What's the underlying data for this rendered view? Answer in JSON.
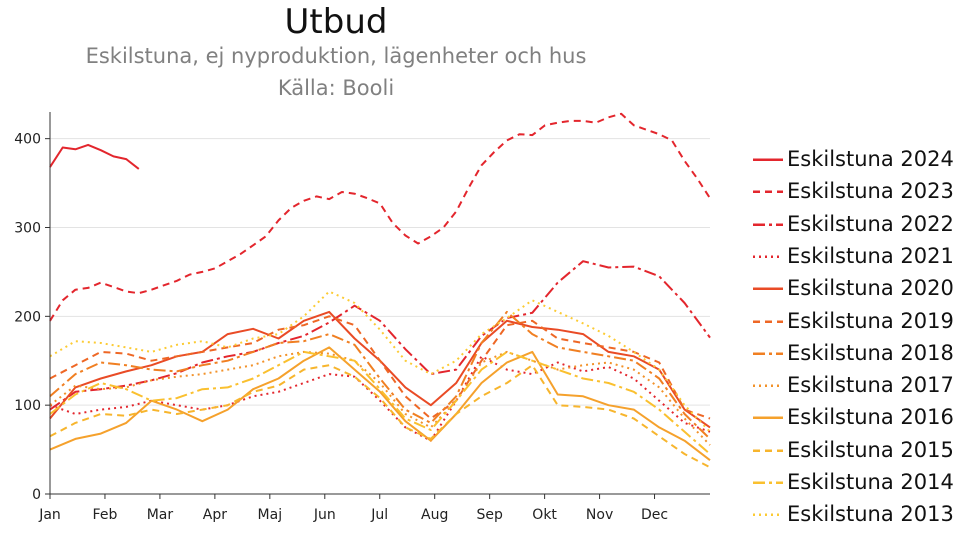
{
  "title": "Utbud",
  "subtitle": "Eskilstuna, ej nyproduktion, lägenheter och hus",
  "source": "Källa: Booli",
  "chart_data": {
    "type": "line",
    "x_ticks": [
      "Jan",
      "Feb",
      "Mar",
      "Apr",
      "Maj",
      "Jun",
      "Jul",
      "Aug",
      "Sep",
      "Okt",
      "Nov",
      "Dec"
    ],
    "y_ticks": [
      0,
      100,
      200,
      300,
      400
    ],
    "xlim": [
      1,
      53
    ],
    "ylim": [
      0,
      430
    ],
    "grid": "horizontal",
    "legend_position": "right",
    "series": [
      {
        "name": "Eskilstuna 2024",
        "color": "#e3262d",
        "dash": "solid",
        "x": [
          1,
          2,
          3,
          4,
          5,
          6,
          7,
          8
        ],
        "values": [
          368,
          390,
          388,
          393,
          387,
          380,
          377,
          366
        ]
      },
      {
        "name": "Eskilstuna 2023",
        "color": "#e3262d",
        "dash": "dash",
        "x": [
          1,
          2,
          3,
          4,
          5,
          6,
          7,
          8,
          9,
          10,
          11,
          12,
          13,
          14,
          15,
          16,
          17,
          18,
          19,
          20,
          21,
          22,
          23,
          24,
          25,
          26,
          27,
          28,
          29,
          30,
          31,
          32,
          33,
          34,
          35,
          36,
          37,
          38,
          39,
          40,
          41,
          42,
          43,
          44,
          45,
          46,
          47,
          48,
          49,
          50,
          51,
          52,
          53
        ],
        "values": [
          195,
          218,
          230,
          232,
          238,
          233,
          228,
          226,
          230,
          235,
          240,
          247,
          250,
          254,
          262,
          270,
          280,
          290,
          308,
          322,
          330,
          335,
          332,
          340,
          338,
          333,
          327,
          305,
          291,
          282,
          290,
          300,
          318,
          345,
          370,
          385,
          398,
          405,
          404,
          415,
          418,
          420,
          420,
          418,
          424,
          428,
          415,
          410,
          405,
          398,
          375,
          355,
          333
        ]
      },
      {
        "name": "Eskilstuna 2022",
        "color": "#e3262d",
        "dash": "dashdot",
        "x": [
          1,
          3,
          5,
          7,
          9,
          11,
          13,
          15,
          17,
          19,
          21,
          23,
          25,
          27,
          29,
          31,
          33,
          35,
          37,
          39,
          41,
          43,
          45,
          47,
          49,
          51,
          53
        ],
        "values": [
          95,
          115,
          118,
          122,
          128,
          136,
          148,
          155,
          160,
          170,
          178,
          193,
          212,
          195,
          163,
          135,
          140,
          178,
          198,
          204,
          238,
          262,
          255,
          256,
          245,
          215,
          176
        ]
      },
      {
        "name": "Eskilstuna 2021",
        "color": "#e3262d",
        "dash": "dot",
        "x": [
          1,
          3,
          5,
          7,
          9,
          11,
          13,
          15,
          17,
          19,
          21,
          23,
          25,
          27,
          29,
          31,
          33,
          35,
          37,
          39,
          41,
          43,
          45,
          47,
          49,
          51,
          53
        ],
        "values": [
          100,
          90,
          95,
          98,
          105,
          100,
          95,
          100,
          110,
          115,
          125,
          135,
          132,
          105,
          75,
          60,
          105,
          155,
          140,
          135,
          148,
          138,
          143,
          130,
          105,
          80,
          70
        ]
      },
      {
        "name": "Eskilstuna 2020",
        "color": "#e94b26",
        "dash": "solid",
        "x": [
          1,
          3,
          5,
          7,
          9,
          11,
          13,
          15,
          17,
          19,
          21,
          23,
          25,
          27,
          29,
          31,
          33,
          35,
          37,
          39,
          41,
          43,
          45,
          47,
          49,
          51,
          53
        ],
        "values": [
          85,
          120,
          130,
          138,
          145,
          155,
          160,
          180,
          186,
          175,
          195,
          205,
          175,
          150,
          120,
          100,
          125,
          170,
          195,
          188,
          185,
          180,
          160,
          155,
          140,
          95,
          75
        ]
      },
      {
        "name": "Eskilstuna 2019",
        "color": "#ee6725",
        "dash": "dash",
        "x": [
          1,
          3,
          5,
          7,
          9,
          11,
          13,
          15,
          17,
          19,
          21,
          23,
          25,
          27,
          29,
          31,
          33,
          35,
          37,
          39,
          41,
          43,
          45,
          47,
          49,
          51,
          53
        ],
        "values": [
          130,
          145,
          160,
          158,
          150,
          155,
          160,
          165,
          170,
          185,
          190,
          200,
          190,
          150,
          110,
          85,
          105,
          150,
          190,
          195,
          175,
          170,
          165,
          160,
          148,
          95,
          85
        ]
      },
      {
        "name": "Eskilstuna 2018",
        "color": "#f07f22",
        "dash": "dashdot",
        "x": [
          1,
          3,
          5,
          7,
          9,
          11,
          13,
          15,
          17,
          19,
          21,
          23,
          25,
          27,
          29,
          31,
          33,
          35,
          37,
          39,
          41,
          43,
          45,
          47,
          49,
          51,
          53
        ],
        "values": [
          110,
          135,
          148,
          145,
          140,
          138,
          145,
          150,
          160,
          170,
          172,
          180,
          168,
          130,
          95,
          80,
          110,
          170,
          205,
          180,
          165,
          160,
          155,
          150,
          130,
          90,
          62
        ]
      },
      {
        "name": "Eskilstuna 2017",
        "color": "#f2922a",
        "dash": "dot",
        "x": [
          1,
          3,
          5,
          7,
          9,
          11,
          13,
          15,
          17,
          19,
          21,
          23,
          25,
          27,
          29,
          31,
          33,
          35,
          37,
          39,
          41,
          43,
          45,
          47,
          49,
          51,
          53
        ],
        "values": [
          100,
          122,
          118,
          120,
          128,
          132,
          135,
          140,
          145,
          155,
          160,
          158,
          150,
          125,
          90,
          75,
          105,
          148,
          160,
          150,
          140,
          145,
          148,
          140,
          120,
          85,
          55
        ]
      },
      {
        "name": "Eskilstuna 2016",
        "color": "#f5a12c",
        "dash": "solid",
        "x": [
          1,
          3,
          5,
          7,
          9,
          11,
          13,
          15,
          17,
          19,
          21,
          23,
          25,
          27,
          29,
          31,
          33,
          35,
          37,
          39,
          41,
          43,
          45,
          47,
          49,
          51,
          53
        ],
        "values": [
          50,
          62,
          68,
          80,
          105,
          95,
          82,
          95,
          118,
          130,
          150,
          165,
          140,
          115,
          82,
          60,
          90,
          125,
          148,
          160,
          112,
          110,
          100,
          95,
          75,
          60,
          38
        ]
      },
      {
        "name": "Eskilstuna 2015",
        "color": "#f7b52d",
        "dash": "dash",
        "x": [
          1,
          3,
          5,
          7,
          9,
          11,
          13,
          15,
          17,
          19,
          21,
          23,
          25,
          27,
          29,
          31,
          33,
          35,
          37,
          39,
          41,
          43,
          45,
          47,
          49,
          51,
          53
        ],
        "values": [
          65,
          80,
          90,
          88,
          95,
          90,
          95,
          100,
          115,
          122,
          140,
          145,
          132,
          108,
          75,
          62,
          90,
          110,
          125,
          145,
          100,
          98,
          95,
          85,
          65,
          45,
          30
        ]
      },
      {
        "name": "Eskilstuna 2014",
        "color": "#fac02f",
        "dash": "dashdot",
        "x": [
          1,
          3,
          5,
          7,
          9,
          11,
          13,
          15,
          17,
          19,
          21,
          23,
          25,
          27,
          29,
          31,
          33,
          35,
          37,
          39,
          41,
          43,
          45,
          47,
          49,
          51,
          53
        ],
        "values": [
          90,
          112,
          125,
          118,
          105,
          108,
          118,
          120,
          130,
          145,
          160,
          155,
          150,
          118,
          85,
          72,
          105,
          140,
          160,
          150,
          140,
          130,
          125,
          115,
          95,
          70,
          45
        ]
      },
      {
        "name": "Eskilstuna 2013",
        "color": "#fccb34",
        "dash": "dot",
        "x": [
          1,
          3,
          5,
          7,
          9,
          11,
          13,
          15,
          17,
          19,
          21,
          23,
          25,
          27,
          29,
          31,
          33,
          35,
          37,
          39,
          41,
          43,
          45,
          47,
          49,
          51,
          53
        ],
        "values": [
          155,
          172,
          170,
          165,
          160,
          168,
          172,
          165,
          175,
          180,
          200,
          228,
          215,
          185,
          150,
          135,
          150,
          180,
          198,
          218,
          205,
          192,
          178,
          160,
          140,
          100,
          70
        ]
      }
    ]
  }
}
